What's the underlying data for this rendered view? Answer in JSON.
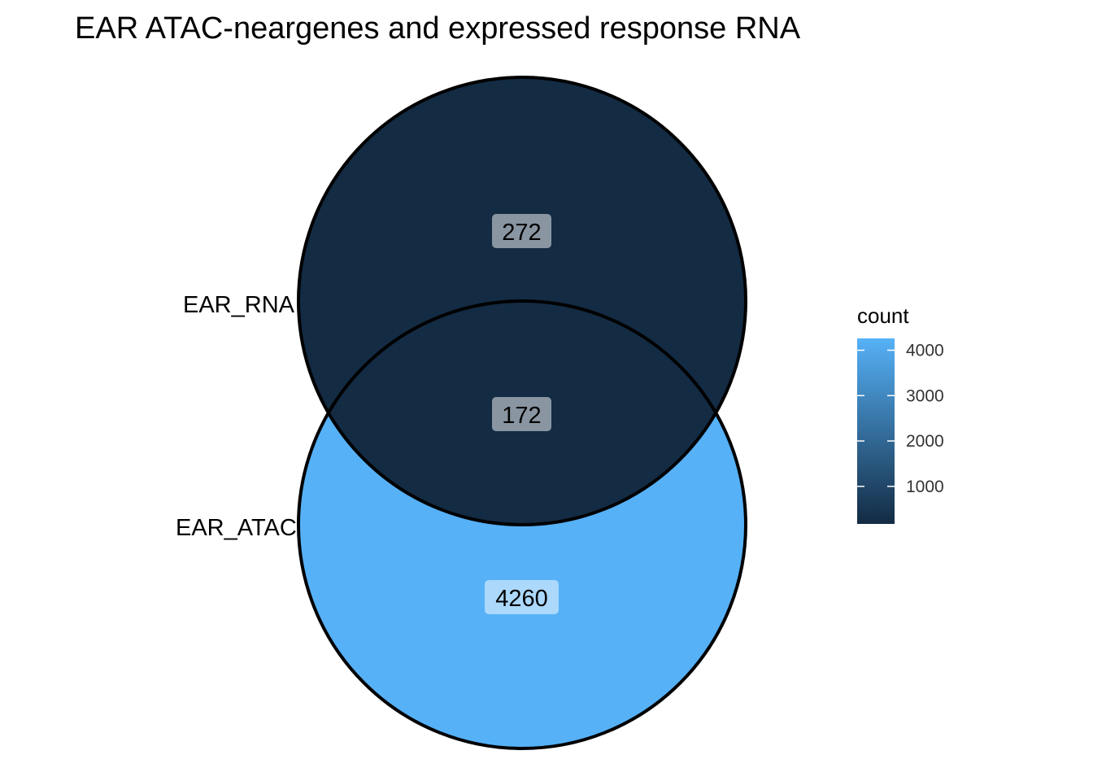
{
  "title": "EAR ATAC-neargenes and expressed response RNA",
  "sets": [
    {
      "id": "rna",
      "label": "EAR_RNA"
    },
    {
      "id": "atac",
      "label": "EAR_ATAC"
    }
  ],
  "regions": [
    {
      "id": "rna_only",
      "sets": [
        "EAR_RNA"
      ],
      "count": 272,
      "label": "272",
      "fill": "#132B43"
    },
    {
      "id": "both",
      "sets": [
        "EAR_RNA",
        "EAR_ATAC"
      ],
      "count": 172,
      "label": "172",
      "fill": "#132B43"
    },
    {
      "id": "atac_only",
      "sets": [
        "EAR_ATAC"
      ],
      "count": 4260,
      "label": "4260",
      "fill": "#56B1F7"
    }
  ],
  "legend": {
    "title": "count",
    "low_color": "#132B43",
    "high_color": "#56B1F7",
    "min": 172,
    "max": 4260,
    "ticks": [
      {
        "value": 1000,
        "label": "1000"
      },
      {
        "value": 2000,
        "label": "2000"
      },
      {
        "value": 3000,
        "label": "3000"
      },
      {
        "value": 4000,
        "label": "4000"
      }
    ]
  },
  "outline_color": "#000000",
  "label_box_color": "#ffffff"
}
